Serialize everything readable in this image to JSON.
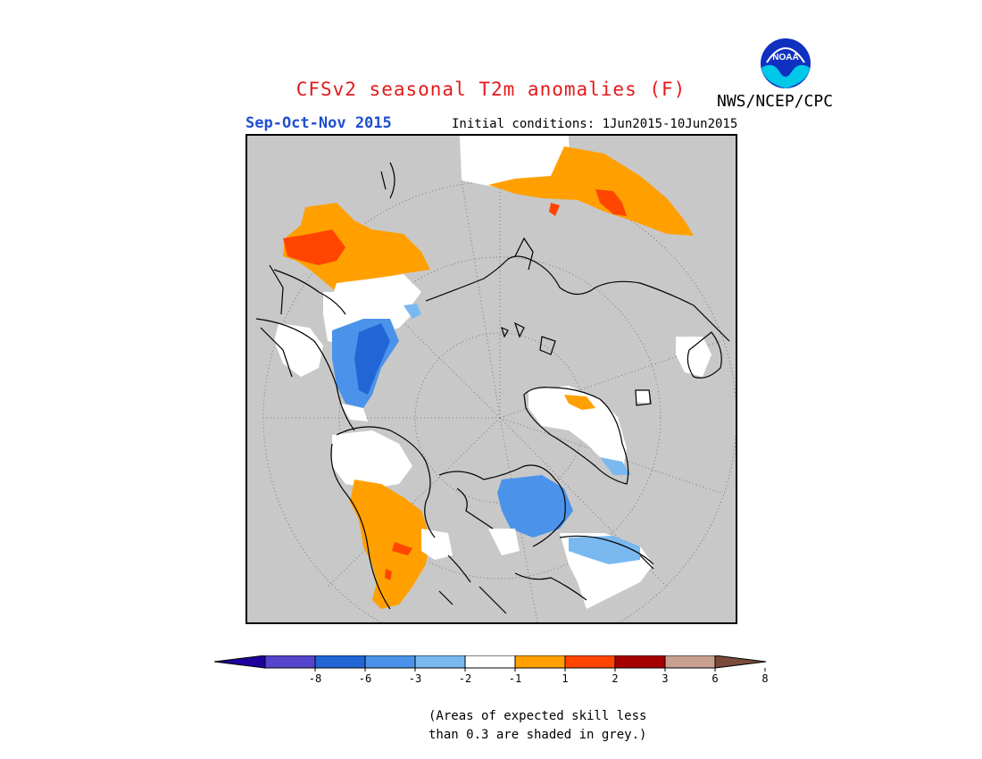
{
  "header": {
    "title": "CFSv2 seasonal T2m anomalies (F)",
    "season": "Sep-Oct-Nov 2015",
    "initial_conditions": "Initial conditions: 1Jun2015-10Jun2015",
    "agency": "NWS/NCEP/CPC",
    "logo_text": "NOAA"
  },
  "colors": {
    "title": "#e41a1c",
    "season": "#1f4fd1",
    "low_skill_grey": "#c8c8c8"
  },
  "map": {
    "projection": "north polar stereographic",
    "grey_meaning": "low skill"
  },
  "colorbar": {
    "tick_labels": [
      "-8",
      "-6",
      "-3",
      "-2",
      "-1",
      "1",
      "2",
      "3",
      "6",
      "8"
    ],
    "bins": [
      {
        "range": "< -8",
        "color": "#20009c"
      },
      {
        "range": "-8 to -6",
        "color": "#5544cc"
      },
      {
        "range": "-6 to -3",
        "color": "#2266d6"
      },
      {
        "range": "-3 to -2",
        "color": "#4b93ea"
      },
      {
        "range": "-2 to -1",
        "color": "#7ab8f0"
      },
      {
        "range": "-1 to 1",
        "color": "#ffffff"
      },
      {
        "range": "1 to 2",
        "color": "#ffa000"
      },
      {
        "range": "2 to 3",
        "color": "#ff4500"
      },
      {
        "range": "3 to 6",
        "color": "#a50000"
      },
      {
        "range": "6 to 8",
        "color": "#c8a090"
      },
      {
        "range": "> 8",
        "color": "#7a4a3a"
      }
    ]
  },
  "footnote": {
    "line1": "(Areas of expected skill less",
    "line2": "than 0.3 are shaded in grey.)"
  }
}
